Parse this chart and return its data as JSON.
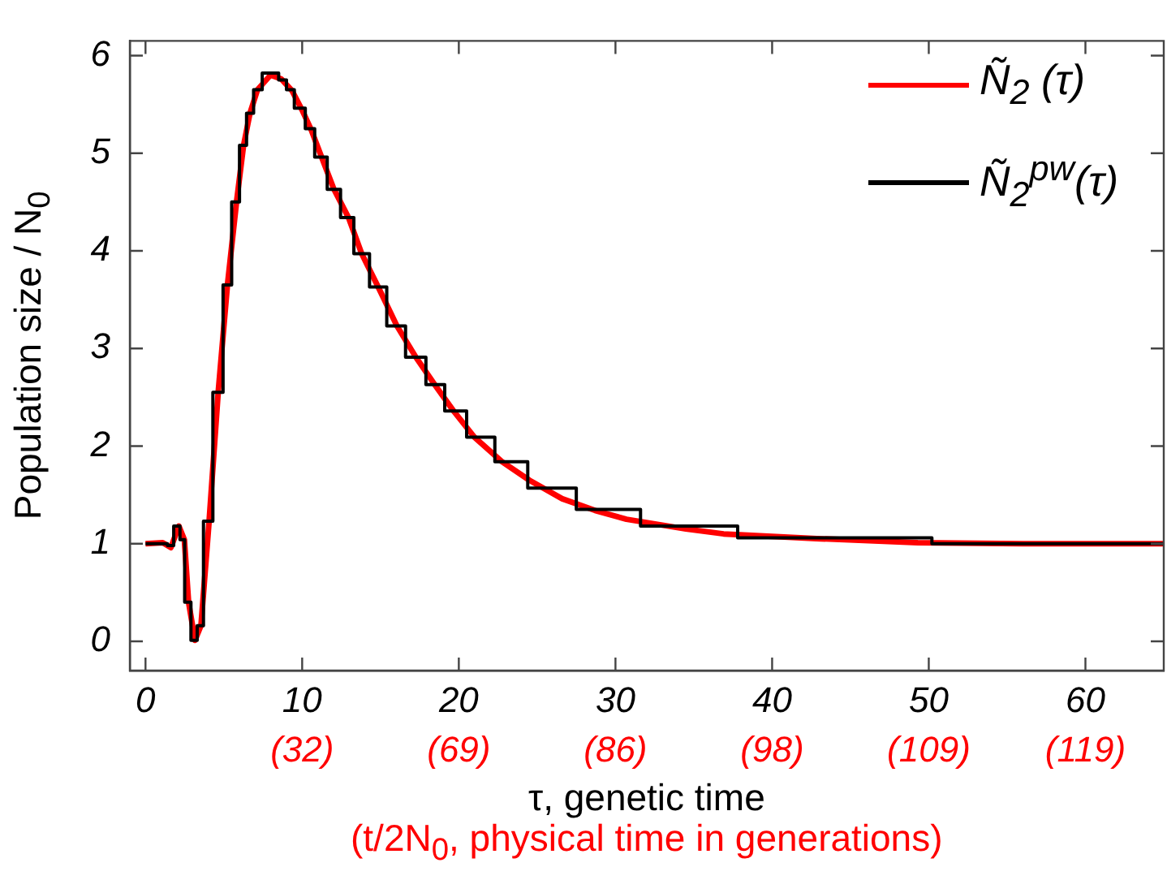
{
  "chart_data": {
    "type": "line",
    "xlabel": "τ, genetic time",
    "ylabel": "Population size / N$_{0}$",
    "annotations": [
      "(32)",
      "(69)",
      "(86)",
      "(98)",
      "(109)",
      "(119)",
      "(t/2N$_{0}$, physical time in generations)"
    ],
    "xlim": [
      -1,
      65
    ],
    "xticks": [
      0,
      10,
      20,
      30,
      40,
      50,
      60
    ],
    "ylim": [
      -0.3,
      6.15
    ],
    "yticks": [
      0,
      1,
      2,
      3,
      4,
      5,
      6
    ],
    "grid": false,
    "legend": "top right",
    "marker": "none",
    "series": [
      {
        "name": "Ñ$_{2}$ (τ)",
        "color": "#ff0000",
        "type": "line",
        "x": [
          0,
          1.1,
          1.62,
          2.13,
          2.48,
          2.75,
          3.16,
          3.54,
          4.06,
          4.64,
          5.23,
          5.81,
          6.26,
          6.67,
          7.15,
          7.98,
          8.67,
          9.35,
          9.97,
          10.55,
          11.24,
          12.03,
          12.96,
          13.8,
          14.85,
          16.05,
          17.26,
          18.46,
          19.66,
          21.0,
          22.75,
          24.5,
          26.6,
          28.7,
          30.7,
          34.5,
          36.9,
          43.1,
          49.3,
          56,
          65
        ],
        "values": [
          1.0,
          1.01,
          0.96,
          1.18,
          1.04,
          0.4,
          0.01,
          0.16,
          1.23,
          2.55,
          3.65,
          4.5,
          5.08,
          5.41,
          5.65,
          5.8,
          5.76,
          5.64,
          5.45,
          5.25,
          4.96,
          4.63,
          4.34,
          3.97,
          3.63,
          3.23,
          2.91,
          2.63,
          2.36,
          2.09,
          1.84,
          1.65,
          1.46,
          1.34,
          1.25,
          1.15,
          1.1,
          1.05,
          1.01,
          1.0,
          1.0
        ]
      },
      {
        "name": "Ñ$_{2}$$^{pw}$(τ)",
        "color": "#000000",
        "type": "step",
        "x": [
          0,
          1.4,
          1.8,
          2.2,
          2.5,
          2.9,
          3.3,
          3.7,
          4.3,
          4.95,
          5.5,
          6.0,
          6.45,
          6.9,
          7.45,
          8.5,
          9.0,
          9.5,
          10.2,
          10.8,
          11.6,
          12.45,
          13.3,
          14.3,
          15.4,
          16.6,
          17.9,
          19.1,
          20.5,
          22.3,
          24.4,
          27.5,
          31.6,
          37.8,
          50.2,
          65
        ],
        "values": [
          1.0,
          0.98,
          1.18,
          1.04,
          0.4,
          0.01,
          0.16,
          1.23,
          2.55,
          3.65,
          4.5,
          5.08,
          5.41,
          5.65,
          5.82,
          5.75,
          5.65,
          5.46,
          5.25,
          4.96,
          4.63,
          4.34,
          3.97,
          3.63,
          3.23,
          2.91,
          2.63,
          2.36,
          2.09,
          1.84,
          1.57,
          1.35,
          1.18,
          1.06,
          1.0,
          1.0
        ]
      }
    ]
  }
}
